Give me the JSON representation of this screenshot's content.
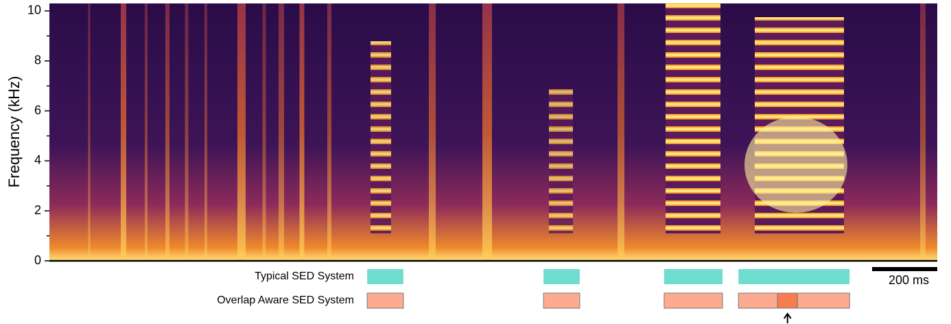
{
  "chart_data": {
    "type": "spectrogram",
    "y_label": "Frequency (kHz)",
    "ylim": [
      0,
      10.3
    ],
    "yticks": [
      0,
      2,
      4,
      6,
      8,
      10
    ],
    "y_minor_ticks": [
      1,
      3,
      5,
      7,
      9
    ],
    "xlim": [
      0,
      2724
    ],
    "scale_bar": {
      "value": 200,
      "label": "200 ms"
    },
    "rows": [
      {
        "name": "Typical SED System",
        "color": "#6fdcd0",
        "events": [
          [
            975,
            1086
          ],
          [
            1516,
            1627
          ],
          [
            1886,
            2065
          ],
          [
            2114,
            2455
          ]
        ]
      },
      {
        "name": "Overlap Aware SED System",
        "color": "#fcab90",
        "events": [
          [
            975,
            1086
          ],
          [
            1516,
            1627
          ],
          [
            1886,
            2065
          ],
          [
            2114,
            2234
          ],
          [
            2295,
            2455
          ]
        ],
        "overlap_color": "#f77c50",
        "overlap_events": [
          [
            2234,
            2295
          ]
        ]
      }
    ]
  }
}
